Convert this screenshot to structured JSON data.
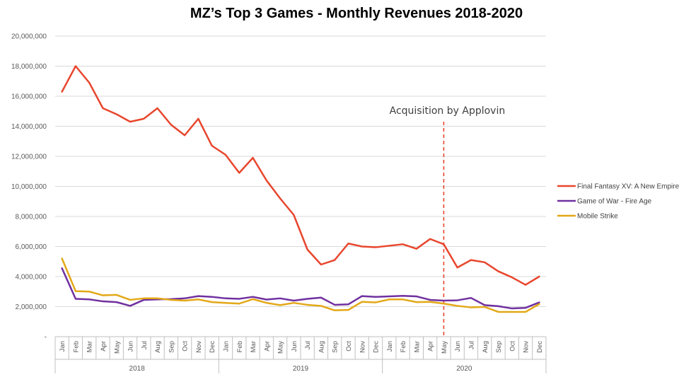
{
  "chart_data": {
    "type": "line",
    "title": "MZ’s Top 3 Games - Monthly Revenues 2018-2020",
    "xlabel": "",
    "ylabel": "",
    "ylim": [
      0,
      20000000
    ],
    "y_ticks": [
      "-",
      "2,000,000",
      "4,000,000",
      "6,000,000",
      "8,000,000",
      "10,000,000",
      "12,000,000",
      "14,000,000",
      "16,000,000",
      "18,000,000",
      "20,000,000"
    ],
    "grid": "horizontal",
    "legend_position": "right",
    "years": [
      "2018",
      "2019",
      "2020"
    ],
    "months": [
      "Jan",
      "Feb",
      "Mar",
      "Apr",
      "May",
      "Jun",
      "Jul",
      "Aug",
      "Sep",
      "Oct",
      "Nov",
      "Dec"
    ],
    "categories": [
      "Jan 2018",
      "Feb 2018",
      "Mar 2018",
      "Apr 2018",
      "May 2018",
      "Jun 2018",
      "Jul 2018",
      "Aug 2018",
      "Sep 2018",
      "Oct 2018",
      "Nov 2018",
      "Dec 2018",
      "Jan 2019",
      "Feb 2019",
      "Mar 2019",
      "Apr 2019",
      "May 2019",
      "Jun 2019",
      "Jul 2019",
      "Aug 2019",
      "Sep 2019",
      "Oct 2019",
      "Nov 2019",
      "Dec 2019",
      "Jan 2020",
      "Feb 2020",
      "Mar 2020",
      "Apr 2020",
      "May 2020",
      "Jun 2020",
      "Jul 2020",
      "Aug 2020",
      "Sep 2020",
      "Oct 2020",
      "Nov 2020",
      "Dec 2020"
    ],
    "series": [
      {
        "name": "Final Fantasy XV: A New Empire",
        "color": "#E8462D",
        "values": [
          16300000,
          18000000,
          16900000,
          15200000,
          14800000,
          14300000,
          14500000,
          15200000,
          14100000,
          13400000,
          14500000,
          12700000,
          12100000,
          10900000,
          11900000,
          10400000,
          9200000,
          8100000,
          5800000,
          4800000,
          5100000,
          6200000,
          6000000,
          5950000,
          6050000,
          6150000,
          5850000,
          6500000,
          6150000,
          4600000,
          5100000,
          4950000,
          4350000,
          3950000,
          3450000,
          4000000
        ]
      },
      {
        "name": "Game of War - Fire Age",
        "color": "#7030A0",
        "values": [
          4550000,
          2520000,
          2480000,
          2350000,
          2300000,
          2050000,
          2450000,
          2480000,
          2500000,
          2550000,
          2700000,
          2650000,
          2550000,
          2520000,
          2650000,
          2470000,
          2550000,
          2400000,
          2520000,
          2600000,
          2120000,
          2150000,
          2700000,
          2650000,
          2680000,
          2720000,
          2680000,
          2450000,
          2400000,
          2420000,
          2580000,
          2100000,
          2030000,
          1880000,
          1920000,
          2280000
        ]
      },
      {
        "name": "Mobile Strike",
        "color": "#E3A817",
        "values": [
          5200000,
          3030000,
          3000000,
          2750000,
          2780000,
          2450000,
          2550000,
          2550000,
          2450000,
          2400000,
          2480000,
          2300000,
          2250000,
          2200000,
          2500000,
          2250000,
          2100000,
          2250000,
          2120000,
          2050000,
          1750000,
          1780000,
          2320000,
          2280000,
          2480000,
          2480000,
          2300000,
          2320000,
          2200000,
          2050000,
          1950000,
          1980000,
          1650000,
          1650000,
          1650000,
          2170000
        ]
      }
    ],
    "annotations": [
      {
        "text": "Acquisition by Applovin",
        "x": "May 2020",
        "style": "dashed-vertical-line",
        "color": "#E8462D"
      }
    ]
  }
}
